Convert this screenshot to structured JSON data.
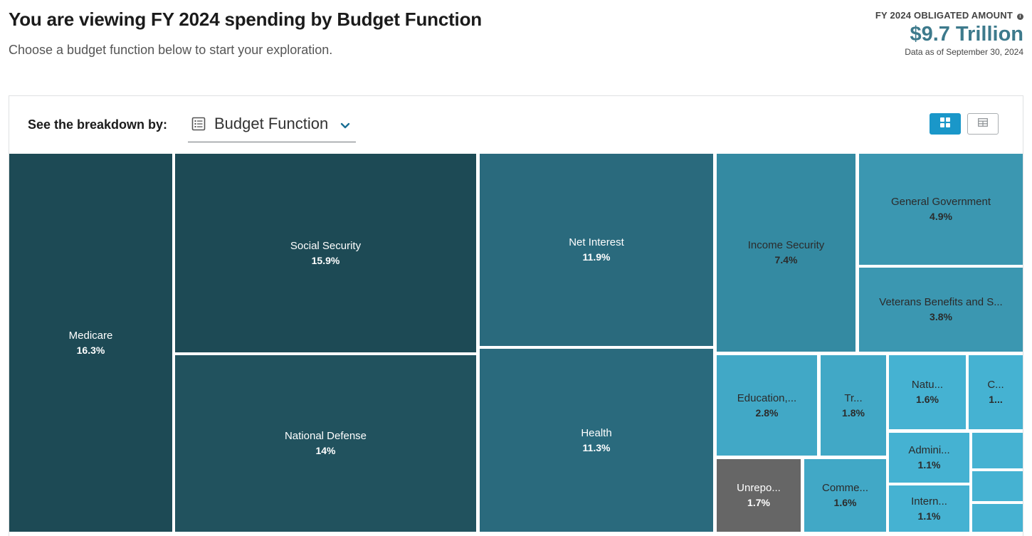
{
  "header": {
    "title": "You are viewing FY 2024 spending by Budget Function",
    "subtitle": "Choose a budget function below to start your exploration."
  },
  "summary": {
    "label": "FY 2024 OBLIGATED AMOUNT",
    "info_icon": "info-icon",
    "amount": "$9.7 Trillion",
    "as_of": "Data as of September 30, 2024"
  },
  "controls": {
    "breakdown_label": "See the breakdown by:",
    "dropdown_value": "Budget Function",
    "dropdown_icon": "list-icon",
    "views": [
      {
        "name": "treemap-view",
        "icon": "grid-icon",
        "active": true
      },
      {
        "name": "table-view",
        "icon": "table-icon",
        "active": false
      }
    ]
  },
  "colors": {
    "accent": "#1a97c9",
    "amount": "#3d7a8c",
    "tile_darkest": "#1d4a55",
    "tile_dark": "#21525e",
    "tile_mid": "#2a6a7d",
    "tile_mid_light": "#348aa2",
    "tile_light": "#3b97b1",
    "tile_lighter": "#41a8c6",
    "tile_lightest": "#45b2d2",
    "tile_unreported": "#666666"
  },
  "treemap": {
    "tiles": [
      {
        "name": "Medicare",
        "pct": "16.3%"
      },
      {
        "name": "Social Security",
        "pct": "15.9%"
      },
      {
        "name": "National Defense",
        "pct": "14%"
      },
      {
        "name": "Net Interest",
        "pct": "11.9%"
      },
      {
        "name": "Health",
        "pct": "11.3%"
      },
      {
        "name": "Income Security",
        "pct": "7.4%"
      },
      {
        "name": "General Government",
        "pct": "4.9%"
      },
      {
        "name": "Veterans Benefits and S...",
        "pct": "3.8%"
      },
      {
        "name": "Education,...",
        "pct": "2.8%"
      },
      {
        "name": "Tr...",
        "pct": "1.8%"
      },
      {
        "name": "Natu...",
        "pct": "1.6%"
      },
      {
        "name": "C...",
        "pct": "1..."
      },
      {
        "name": "Unrepo...",
        "pct": "1.7%"
      },
      {
        "name": "Comme...",
        "pct": "1.6%"
      },
      {
        "name": "Admini...",
        "pct": "1.1%"
      },
      {
        "name": "Intern...",
        "pct": "1.1%"
      },
      {
        "name": "",
        "pct": ""
      },
      {
        "name": "",
        "pct": ""
      },
      {
        "name": "",
        "pct": ""
      }
    ]
  }
}
